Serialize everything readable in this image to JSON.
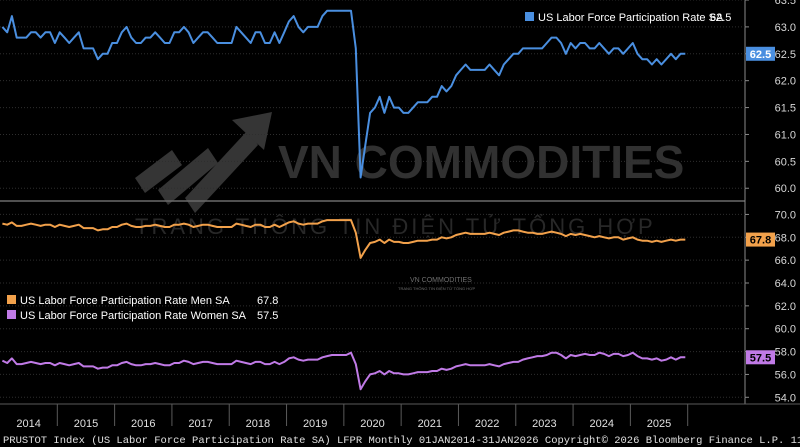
{
  "colors": {
    "background": "#000000",
    "top_line": "#4a8fe0",
    "men_line": "#f2a14b",
    "women_line": "#c07ae6",
    "grid": "#2e2e2e",
    "axis_text": "#d8d8d8"
  },
  "watermark": {
    "main": "VN COMMODITIES",
    "sub": "TRANG THÔNG TIN ĐIỆN TỬ TỔNG HỢP",
    "small_main": "VN COMMODITIES",
    "small_sub": "TRANG THÔNG TIN ĐIỆN TỬ TỔNG HỢP"
  },
  "footer": "PRUSTOT Index (US Labor Force Participation Rate SA) LFPR Monthly 01JAN2014-31JAN2026 Copyright© 2026 Bloomberg Finance L.P. 11-Feb-2026 08:39:39",
  "chart_data": [
    {
      "type": "line",
      "x_start": "2014-01",
      "x_end": "2026-01",
      "x_ticks": [
        "2014",
        "2015",
        "2016",
        "2017",
        "2018",
        "2019",
        "2020",
        "2021",
        "2022",
        "2023",
        "2024",
        "2025"
      ],
      "ylim": [
        59.8,
        63.5
      ],
      "y_ticks": [
        60.0,
        60.5,
        61.0,
        61.5,
        62.0,
        62.5,
        63.0,
        63.5
      ],
      "legend_position": "top-right",
      "series": [
        {
          "name": "US Labor Force Participation Rate SA",
          "last_value": "62.5",
          "values": [
            63.0,
            62.9,
            63.2,
            62.8,
            62.8,
            62.8,
            62.9,
            62.9,
            62.8,
            62.9,
            62.9,
            62.7,
            62.9,
            62.8,
            62.7,
            62.8,
            62.9,
            62.6,
            62.6,
            62.6,
            62.4,
            62.5,
            62.5,
            62.7,
            62.7,
            62.9,
            63.0,
            62.8,
            62.7,
            62.7,
            62.8,
            62.8,
            62.9,
            62.8,
            62.7,
            62.7,
            62.9,
            62.9,
            63.0,
            62.9,
            62.7,
            62.8,
            62.9,
            62.9,
            62.8,
            62.7,
            62.7,
            62.7,
            62.7,
            63.0,
            62.9,
            62.8,
            62.7,
            62.9,
            62.9,
            62.7,
            62.7,
            62.9,
            62.7,
            62.9,
            63.1,
            63.2,
            63.0,
            62.9,
            63.0,
            63.0,
            63.0,
            63.2,
            63.3,
            63.3,
            63.3,
            63.3,
            63.3,
            63.3,
            62.6,
            60.2,
            60.8,
            61.4,
            61.5,
            61.7,
            61.4,
            61.7,
            61.5,
            61.5,
            61.4,
            61.4,
            61.5,
            61.6,
            61.6,
            61.6,
            61.7,
            61.7,
            61.9,
            61.8,
            61.9,
            62.1,
            62.2,
            62.3,
            62.2,
            62.2,
            62.2,
            62.2,
            62.3,
            62.2,
            62.1,
            62.3,
            62.4,
            62.5,
            62.5,
            62.6,
            62.6,
            62.6,
            62.6,
            62.6,
            62.7,
            62.8,
            62.8,
            62.7,
            62.5,
            62.7,
            62.6,
            62.7,
            62.7,
            62.6,
            62.6,
            62.7,
            62.6,
            62.5,
            62.6,
            62.6,
            62.5,
            62.6,
            62.7,
            62.5,
            62.4,
            62.4,
            62.3,
            62.4,
            62.3,
            62.4,
            62.5,
            62.4,
            62.5,
            62.5
          ]
        }
      ]
    },
    {
      "type": "line",
      "x_start": "2014-01",
      "x_end": "2026-01",
      "ylim": [
        53.5,
        71.0
      ],
      "y_ticks": [
        54.0,
        56.0,
        58.0,
        60.0,
        62.0,
        64.0,
        66.0,
        68.0,
        70.0
      ],
      "legend_position": "middle-left",
      "series": [
        {
          "name": "US Labor Force Participation Rate Men SA",
          "last_value": "67.8",
          "values": [
            69.2,
            69.1,
            69.3,
            69.0,
            69.0,
            69.1,
            69.2,
            69.1,
            69.0,
            69.1,
            69.1,
            68.9,
            69.1,
            69.0,
            68.9,
            69.0,
            69.1,
            68.8,
            68.8,
            68.8,
            68.6,
            68.7,
            68.7,
            68.9,
            68.9,
            69.1,
            69.2,
            69.0,
            68.9,
            68.9,
            69.0,
            69.0,
            69.1,
            69.0,
            68.9,
            68.9,
            69.1,
            69.1,
            69.2,
            69.1,
            68.9,
            69.0,
            69.1,
            69.1,
            69.0,
            68.9,
            68.9,
            68.9,
            68.9,
            69.2,
            69.1,
            69.0,
            68.9,
            69.1,
            69.1,
            68.9,
            68.9,
            69.1,
            68.9,
            69.1,
            69.3,
            69.4,
            69.2,
            69.1,
            69.2,
            69.2,
            69.2,
            69.4,
            69.5,
            69.5,
            69.5,
            69.5,
            69.5,
            69.5,
            68.4,
            66.2,
            66.9,
            67.5,
            67.6,
            67.8,
            67.5,
            67.8,
            67.6,
            67.6,
            67.5,
            67.5,
            67.6,
            67.7,
            67.7,
            67.7,
            67.8,
            67.8,
            68.0,
            67.9,
            68.0,
            68.2,
            68.3,
            68.4,
            68.3,
            68.3,
            68.3,
            68.3,
            68.4,
            68.3,
            68.2,
            68.4,
            68.5,
            68.6,
            68.6,
            68.5,
            68.4,
            68.4,
            68.3,
            68.3,
            68.4,
            68.5,
            68.4,
            68.3,
            68.1,
            68.3,
            68.2,
            68.3,
            68.2,
            68.1,
            68.0,
            68.1,
            68.0,
            67.9,
            68.0,
            68.0,
            67.8,
            67.9,
            68.0,
            67.8,
            67.7,
            67.7,
            67.6,
            67.7,
            67.6,
            67.7,
            67.8,
            67.7,
            67.8,
            67.8
          ]
        },
        {
          "name": "US Labor Force Participation Rate Women SA",
          "last_value": "57.5",
          "values": [
            57.2,
            57.0,
            57.4,
            56.9,
            56.9,
            57.0,
            57.1,
            57.0,
            56.9,
            57.0,
            57.0,
            56.8,
            57.0,
            56.9,
            56.8,
            56.9,
            57.0,
            56.7,
            56.7,
            56.7,
            56.5,
            56.6,
            56.6,
            56.8,
            56.8,
            57.0,
            57.1,
            56.9,
            56.8,
            56.8,
            56.9,
            56.9,
            57.0,
            56.9,
            56.8,
            56.8,
            57.0,
            57.0,
            57.2,
            57.1,
            56.9,
            57.0,
            57.1,
            57.1,
            57.0,
            56.9,
            56.9,
            56.9,
            56.9,
            57.2,
            57.1,
            57.0,
            56.9,
            57.1,
            57.1,
            56.9,
            56.9,
            57.1,
            56.9,
            57.1,
            57.4,
            57.5,
            57.3,
            57.2,
            57.3,
            57.3,
            57.3,
            57.5,
            57.6,
            57.7,
            57.7,
            57.7,
            57.7,
            57.9,
            56.9,
            54.7,
            55.4,
            56.0,
            56.1,
            56.3,
            56.0,
            56.3,
            56.1,
            56.1,
            56.0,
            56.0,
            56.1,
            56.2,
            56.2,
            56.2,
            56.3,
            56.3,
            56.5,
            56.4,
            56.5,
            56.7,
            56.8,
            56.9,
            56.8,
            56.8,
            56.8,
            56.8,
            56.9,
            56.8,
            56.7,
            56.9,
            57.0,
            57.1,
            57.1,
            57.3,
            57.4,
            57.5,
            57.6,
            57.6,
            57.7,
            57.9,
            57.9,
            57.7,
            57.4,
            57.7,
            57.6,
            57.7,
            57.8,
            57.7,
            57.7,
            57.9,
            57.8,
            57.6,
            57.8,
            57.8,
            57.6,
            57.7,
            57.9,
            57.6,
            57.4,
            57.4,
            57.3,
            57.4,
            57.2,
            57.3,
            57.5,
            57.3,
            57.5,
            57.5
          ]
        }
      ]
    }
  ]
}
